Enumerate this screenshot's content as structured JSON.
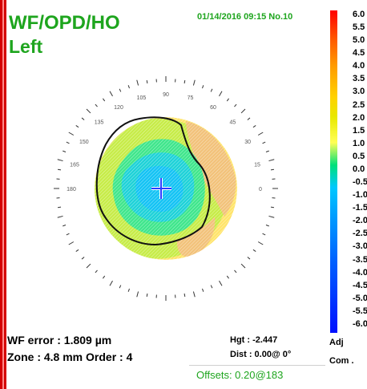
{
  "header": {
    "title": "WF/OPD/HO",
    "eye": "Left",
    "datetime": "01/14/2016 09:15 No.10"
  },
  "axis": {
    "labels": [
      {
        "text": "90",
        "deg": 90
      },
      {
        "text": "75",
        "deg": 75
      },
      {
        "text": "60",
        "deg": 60
      },
      {
        "text": "45",
        "deg": 45
      },
      {
        "text": "30",
        "deg": 30
      },
      {
        "text": "15",
        "deg": 15
      },
      {
        "text": "0",
        "deg": 0
      },
      {
        "text": "105",
        "deg": 105
      },
      {
        "text": "120",
        "deg": 120
      },
      {
        "text": "135",
        "deg": 135
      },
      {
        "text": "150",
        "deg": 150
      },
      {
        "text": "165",
        "deg": 165
      },
      {
        "text": "180",
        "deg": 180
      }
    ]
  },
  "color_scale": {
    "labels": [
      "6.0",
      "5.5",
      "5.0",
      "4.5",
      "4.0",
      "3.5",
      "3.0",
      "2.5",
      "2.0",
      "1.5",
      "1.0",
      "0.5",
      "0.0",
      "-0.5",
      "-1.0",
      "-1.5",
      "-2.0",
      "-2.5",
      "-3.0",
      "-3.5",
      "-4.0",
      "-4.5",
      "-5.0",
      "-5.5",
      "-6.0"
    ]
  },
  "stats": {
    "wf_error": "WF error :  1.809 µm",
    "zone_order": "Zone : 4.8 mm Order  :  4",
    "hgt": "Hgt : -2.447",
    "dist": "Dist :  0.00@  0°",
    "offsets": "Offsets: 0.20@183",
    "adj": "Adj",
    "com": "Com ."
  }
}
